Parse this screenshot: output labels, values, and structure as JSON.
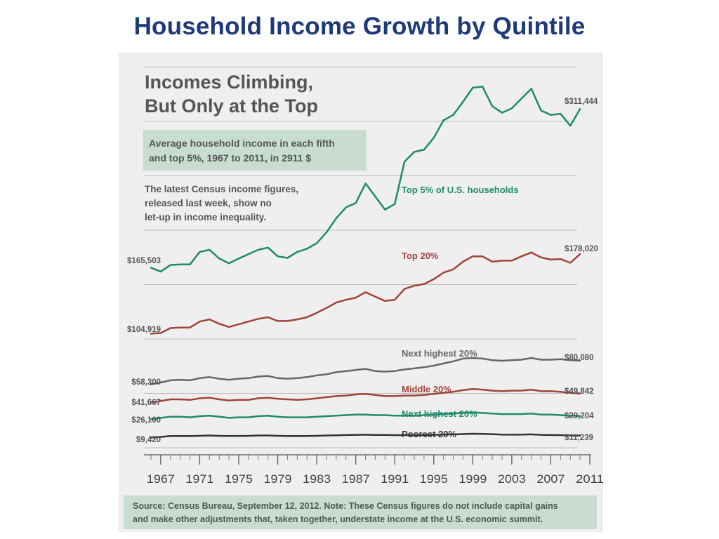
{
  "slide_title": "Household Income Growth by Quintile",
  "chart_data": {
    "type": "line",
    "title": "Incomes Climbing, But Only at the Top",
    "title_lines": [
      "Incomes Climbing,",
      "But Only at the Top"
    ],
    "subtitle": "Average household income in each fifth and top 5%, 1967 to 2011, in 2911 $",
    "subtitle_lines": [
      "Average household income in each fifth",
      "and top 5%, 1967 to 2011, in 2911 $"
    ],
    "annotation_lines": [
      "The latest Census income figures,",
      "released last week, show no",
      "let-up in income inequality."
    ],
    "source_lines": [
      "Source: Census Bureau, September 12, 2012. Note: These Census figures do not include capital gains",
      "and make other adjustments that, taken together, understate income at the U.S. economic summit."
    ],
    "x_ticks": [
      "1967",
      "1971",
      "1975",
      "1979",
      "1983",
      "1987",
      "1991",
      "1995",
      "1999",
      "2003",
      "2007",
      "2011"
    ],
    "xlim": [
      1966,
      2011
    ],
    "ylim": [
      0,
      360000
    ],
    "grid": "horizontal",
    "colors": {
      "teal": "#1f8a6c",
      "rust": "#a0443a",
      "gray": "#666666",
      "dark": "#333333",
      "grid": "#bdbdbd",
      "panel": "#efefef",
      "box": "#c9dcd2",
      "title": "#1f3a7a"
    },
    "x": [
      1966,
      1967,
      1968,
      1969,
      1970,
      1971,
      1972,
      1973,
      1974,
      1975,
      1976,
      1977,
      1978,
      1979,
      1980,
      1981,
      1982,
      1983,
      1984,
      1985,
      1986,
      1987,
      1988,
      1989,
      1990,
      1991,
      1992,
      1993,
      1994,
      1995,
      1996,
      1997,
      1998,
      1999,
      2000,
      2001,
      2002,
      2003,
      2004,
      2005,
      2006,
      2007,
      2008,
      2009,
      2010
    ],
    "series": [
      {
        "name": "Top 5% of U.S. households",
        "color": "#1f8a6c",
        "start_label": "$165,503",
        "end_label": "$311,444",
        "values": [
          165503,
          162000,
          168000,
          168500,
          168500,
          180000,
          182000,
          174000,
          169500,
          174000,
          178000,
          182000,
          184000,
          176000,
          174500,
          180000,
          183000,
          188000,
          198000,
          211000,
          221000,
          225000,
          243000,
          231000,
          219000,
          224000,
          263000,
          272000,
          274000,
          285000,
          301000,
          306000,
          318000,
          331000,
          332000,
          314000,
          308000,
          312000,
          321000,
          330000,
          310000,
          306000,
          307000,
          296000,
          311444
        ]
      },
      {
        "name": "Top 20%",
        "color": "#a0443a",
        "start_label": "$104,919",
        "end_label": "$178,020",
        "values": [
          104919,
          105500,
          110000,
          110500,
          110500,
          116000,
          118000,
          114000,
          111000,
          113500,
          116000,
          118500,
          120000,
          116500,
          116500,
          118000,
          120000,
          124000,
          128500,
          133500,
          136000,
          138000,
          143000,
          139000,
          135000,
          136000,
          146000,
          149000,
          150500,
          155000,
          161000,
          164000,
          171000,
          176000,
          176000,
          171000,
          172000,
          172000,
          176000,
          179500,
          175000,
          173000,
          173500,
          170000,
          178020
        ]
      },
      {
        "name": "Next highest 20%",
        "color": "#666666",
        "start_label": "$58,300",
        "end_label": "$80,080",
        "values": [
          58300,
          60000,
          62000,
          62500,
          62000,
          64000,
          65000,
          63500,
          62500,
          63500,
          64000,
          65500,
          66000,
          64000,
          63500,
          64000,
          65000,
          66500,
          67500,
          69500,
          70500,
          71500,
          72500,
          70500,
          70000,
          70500,
          72000,
          73000,
          74000,
          75500,
          77500,
          79500,
          82000,
          82500,
          82000,
          80500,
          80000,
          80500,
          81000,
          82500,
          81000,
          81000,
          81500,
          80500,
          80080
        ]
      },
      {
        "name": "Middle 20%",
        "color": "#a0443a",
        "start_label": "$41,667",
        "end_label": "$49,842",
        "values": [
          41667,
          43000,
          44500,
          44500,
          44000,
          45500,
          46000,
          44500,
          43500,
          44000,
          44000,
          45500,
          46000,
          45000,
          44500,
          44000,
          44500,
          45500,
          46500,
          47500,
          48000,
          49000,
          49500,
          48500,
          47500,
          47500,
          48000,
          48000,
          48500,
          49500,
          50500,
          51500,
          53000,
          54000,
          53500,
          52500,
          52000,
          52500,
          52500,
          53500,
          52000,
          52000,
          51500,
          50500,
          49842
        ]
      },
      {
        "name": "Next highest 20%",
        "color": "#1f8a6c",
        "start_label": "$26,100",
        "end_label": "$29,204",
        "values": [
          26100,
          27500,
          28500,
          28500,
          28000,
          29000,
          29500,
          28500,
          27500,
          28000,
          28000,
          29000,
          29500,
          28500,
          28000,
          28000,
          28000,
          28500,
          29000,
          29500,
          30000,
          30500,
          30500,
          30000,
          30000,
          29500,
          29500,
          29500,
          30000,
          30500,
          31000,
          31500,
          32000,
          32500,
          32000,
          31500,
          31000,
          31000,
          31000,
          31500,
          30500,
          30500,
          30000,
          29500,
          29204
        ]
      },
      {
        "name": "Poorest 20%",
        "color": "#333333",
        "start_label": "$9,420",
        "end_label": "$11,239",
        "values": [
          9420,
          10000,
          10800,
          10800,
          10800,
          11000,
          11300,
          11000,
          10800,
          10900,
          11000,
          11300,
          11300,
          11000,
          10800,
          10800,
          10800,
          11000,
          11300,
          11500,
          11700,
          11900,
          12000,
          11800,
          11800,
          11600,
          11600,
          11500,
          11600,
          11900,
          12100,
          12300,
          12600,
          12900,
          12800,
          12500,
          12100,
          12000,
          12100,
          12300,
          11900,
          11700,
          11600,
          11300,
          11239
        ]
      }
    ]
  }
}
